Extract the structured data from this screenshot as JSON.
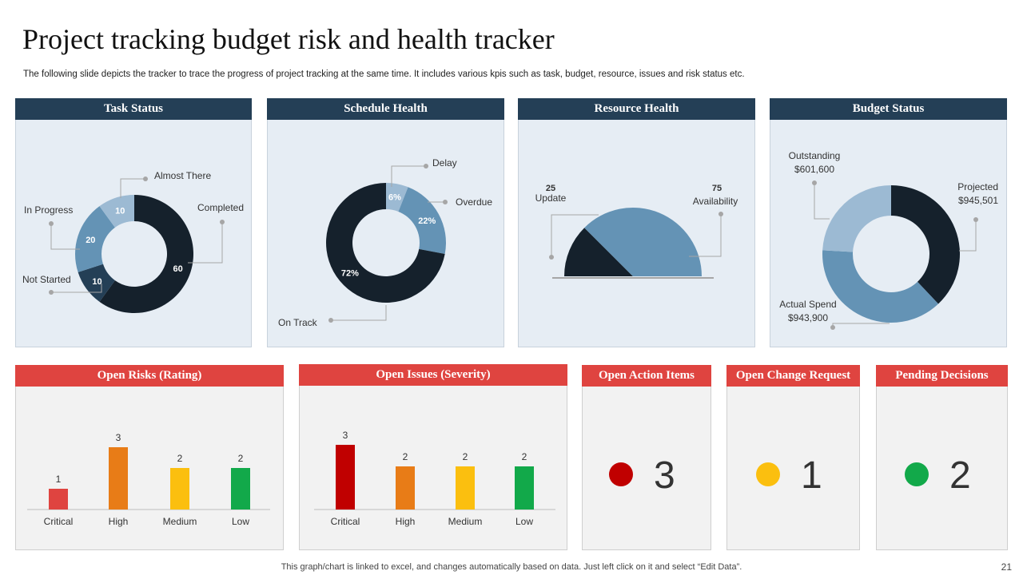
{
  "title": "Project tracking budget risk and health tracker",
  "subtitle": "The following slide depicts the tracker to trace the progress of project tracking at the same time. It includes various kpis such as task, budget, resource, issues and risk status etc.",
  "footer": "This graph/chart is linked to excel,  and changes automatically based on data. Just left click on it and select “Edit Data”.",
  "page_number": "21",
  "colors": {
    "navy": "#243f56",
    "red_header": "#df4440",
    "dark": "#15212c",
    "mid": "#6493b5",
    "light": "#9cbad3",
    "panel_blue": "#e6edf4",
    "panel_grey": "#f2f2f2",
    "critical": "#c00000",
    "high": "#e87c17",
    "medium": "#fbbf0f",
    "low": "#12a94a",
    "risk_critical": "#df4440"
  },
  "panels": {
    "task": "Task Status",
    "schedule": "Schedule Health",
    "resource": "Resource Health",
    "budget": "Budget Status",
    "risks": "Open Risks (Rating)",
    "issues": "Open Issues (Severity)",
    "actions": "Open Action Items",
    "change": "Open Change Request",
    "decisions": "Pending Decisions"
  },
  "chart_data": [
    {
      "type": "donut",
      "title": "Task Status",
      "slices": [
        {
          "label": "Completed",
          "value": 60,
          "display": "60"
        },
        {
          "label": "Not Started",
          "value": 10,
          "display": "10"
        },
        {
          "label": "In Progress",
          "value": 20,
          "display": "20"
        },
        {
          "label": "Almost There",
          "value": 10,
          "display": "10"
        }
      ]
    },
    {
      "type": "donut",
      "title": "Schedule Health",
      "slices": [
        {
          "label": "Delay",
          "value": 6,
          "display": "6%"
        },
        {
          "label": "Overdue",
          "value": 22,
          "display": "22%"
        },
        {
          "label": "On Track",
          "value": 72,
          "display": "72%"
        }
      ]
    },
    {
      "type": "gauge",
      "title": "Resource Health",
      "slices": [
        {
          "label": "Update",
          "value": 25,
          "display": "25"
        },
        {
          "label": "Availability",
          "value": 75,
          "display": "75"
        }
      ]
    },
    {
      "type": "donut",
      "title": "Budget Status",
      "slices": [
        {
          "label": "Projected",
          "value": 945501,
          "line1": "Projected",
          "line2": "$945,501"
        },
        {
          "label": "Actual Spend",
          "value": 943900,
          "line1": "Actual Spend",
          "line2": "$943,900"
        },
        {
          "label": "Outstanding",
          "value": 601600,
          "line1": "Outstanding",
          "line2": "$601,600"
        }
      ]
    },
    {
      "type": "bar",
      "title": "Open Risks (Rating)",
      "categories": [
        "Critical",
        "High",
        "Medium",
        "Low"
      ],
      "values": [
        1,
        3,
        2,
        2
      ],
      "ylim": [
        0,
        3
      ]
    },
    {
      "type": "bar",
      "title": "Open Issues (Severity)",
      "categories": [
        "Critical",
        "High",
        "Medium",
        "Low"
      ],
      "values": [
        3,
        2,
        2,
        2
      ],
      "ylim": [
        0,
        3
      ]
    }
  ],
  "status": {
    "actions": {
      "value": "3",
      "color": "#c00000"
    },
    "change": {
      "value": "1",
      "color": "#fbbf0f"
    },
    "decisions": {
      "value": "2",
      "color": "#12a94a"
    }
  }
}
